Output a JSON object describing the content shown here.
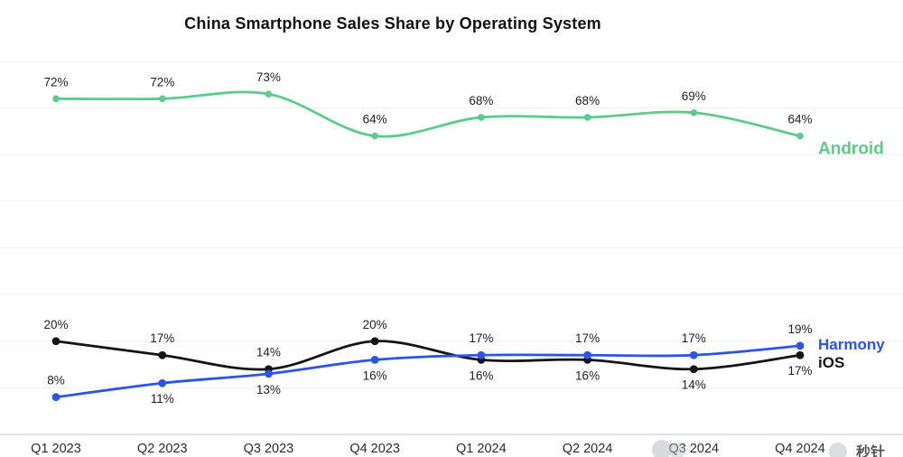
{
  "title": "China Smartphone Sales Share by Operating System",
  "watermark": {
    "text": "秒针"
  },
  "chart_data": {
    "type": "line",
    "title": "China Smartphone Sales Share by Operating System",
    "categories": [
      "Q1 2023",
      "Q2 2023",
      "Q3 2023",
      "Q4 2023",
      "Q1 2024",
      "Q2 2024",
      "Q3 2024",
      "Q4 2024"
    ],
    "series": [
      {
        "name": "Android",
        "color": "#5ecb8e",
        "values": [
          72,
          72,
          73,
          64,
          68,
          68,
          69,
          64
        ],
        "label_positions": [
          "above",
          "above",
          "above",
          "above",
          "above",
          "above",
          "above",
          "above"
        ]
      },
      {
        "name": "iOS",
        "color": "#151515",
        "values": [
          20,
          17,
          14,
          20,
          16,
          16,
          14,
          17
        ],
        "label_positions": [
          "above",
          "above",
          "above",
          "above",
          "below",
          "below",
          "below",
          "below"
        ]
      },
      {
        "name": "Harmony",
        "color": "#2c54e6",
        "values": [
          8,
          11,
          13,
          16,
          17,
          17,
          17,
          19
        ],
        "label_positions": [
          "above",
          "below",
          "below",
          "below",
          "above",
          "above",
          "above",
          "above"
        ]
      }
    ],
    "xlabel": "",
    "ylabel": "",
    "ylim": [
      0,
      80
    ],
    "grid": true,
    "grid_step": 10,
    "value_suffix": "%",
    "legend_position": "right-inline"
  }
}
